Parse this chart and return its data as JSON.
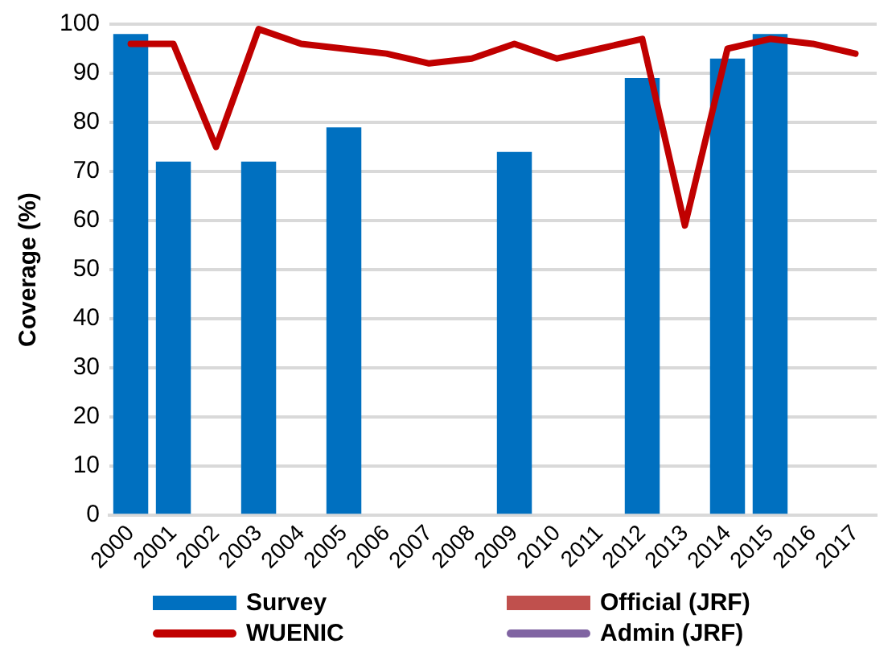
{
  "chart_data": {
    "type": "bar",
    "ylabel": "Coverage (%)",
    "categories": [
      "2000",
      "2001",
      "2002",
      "2003",
      "2004",
      "2005",
      "2006",
      "2007",
      "2008",
      "2009",
      "2010",
      "2011",
      "2012",
      "2013",
      "2014",
      "2015",
      "2016",
      "2017"
    ],
    "series": [
      {
        "name": "Survey",
        "color": "#0070c0",
        "values": [
          98,
          72,
          null,
          72,
          null,
          79,
          null,
          null,
          null,
          74,
          null,
          null,
          89,
          null,
          93,
          98,
          null,
          null
        ]
      },
      {
        "name": "WUENIC",
        "type": "line",
        "color": "#c00000",
        "values": [
          96,
          96,
          75,
          99,
          96,
          95,
          94,
          92,
          93,
          96,
          93,
          95,
          97,
          59,
          95,
          97,
          96,
          94
        ]
      },
      {
        "name": "Official (JRF)",
        "color": "#c0504d",
        "values": [
          null,
          null,
          null,
          null,
          null,
          null,
          null,
          null,
          null,
          null,
          null,
          null,
          null,
          null,
          null,
          null,
          null,
          null
        ]
      },
      {
        "name": "Admin (JRF)",
        "type": "line",
        "color": "#8064a2",
        "values": [
          null,
          null,
          null,
          null,
          null,
          null,
          null,
          null,
          null,
          null,
          null,
          null,
          null,
          null,
          null,
          null,
          null,
          null
        ]
      }
    ],
    "ylim": [
      0,
      100
    ],
    "yticks": [
      0,
      10,
      20,
      30,
      40,
      50,
      60,
      70,
      80,
      90,
      100
    ],
    "grid": "y",
    "legend": "bottom",
    "marker": "none",
    "line_style": "solid"
  }
}
